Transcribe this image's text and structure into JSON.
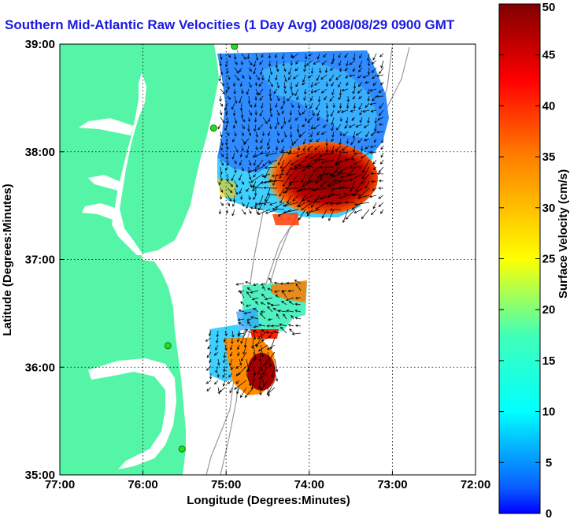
{
  "title": "Southern Mid-Atlantic Raw Velocities (1 Day Avg) 2008/08/29 0900 GMT",
  "map": {
    "xlabel": "Longitude (Degrees:Minutes)",
    "ylabel": "Latitude (Degrees:Minutes)",
    "x_ticks": [
      "77:00",
      "76:00",
      "75:00",
      "74:00",
      "73:00",
      "72:00"
    ],
    "y_ticks": [
      "39:00",
      "38:00",
      "37:00",
      "36:00",
      "35:00"
    ],
    "lon_range": [
      -77,
      -72
    ],
    "lat_range": [
      35,
      39
    ],
    "land_color": "#55f5a8",
    "grid": "dotted"
  },
  "colorbar": {
    "label": "Surface Velocity (cm/s)",
    "ticks": [
      "0",
      "5",
      "10",
      "15",
      "20",
      "25",
      "30",
      "35",
      "40",
      "45",
      "50"
    ],
    "range": [
      0,
      50
    ],
    "colormap": "jet"
  },
  "stations": [
    {
      "lon": -74.9,
      "lat": 38.98
    },
    {
      "lon": -75.15,
      "lat": 38.22
    },
    {
      "lon": -75.7,
      "lat": 36.2
    },
    {
      "lon": -75.53,
      "lat": 35.24
    }
  ]
}
